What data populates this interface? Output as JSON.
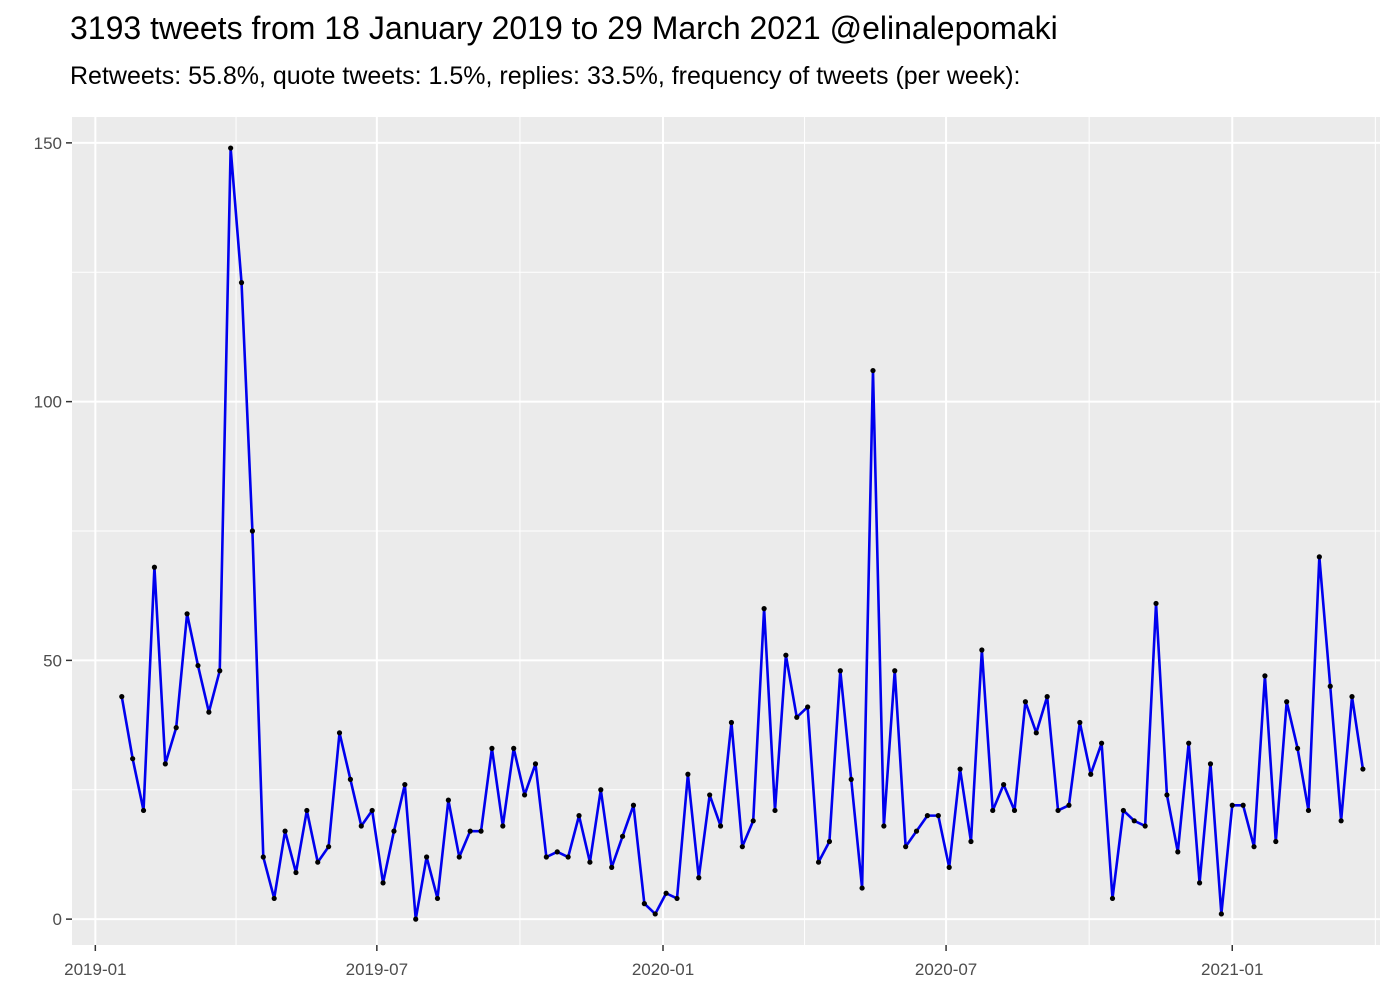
{
  "chart_data": {
    "type": "line",
    "title": "3193 tweets from 18 January 2019 to 29 March 2021 @elinalepomaki",
    "subtitle": "Retweets: 55.8%, quote tweets: 1.5%, replies: 33.5%, frequency of tweets (per week):",
    "xlabel": "",
    "ylabel": "",
    "xlim": [
      "2018-12-17",
      "2021-04-06"
    ],
    "ylim": [
      -5,
      155
    ],
    "x_ticks": [
      "2019-01",
      "2019-07",
      "2020-01",
      "2020-07",
      "2021-01"
    ],
    "y_ticks": [
      0,
      50,
      100,
      150
    ],
    "grid": true,
    "series_color": "#0000ee",
    "point_color": "#000000",
    "background": "#ebebeb",
    "x": [
      "2019-01-18",
      "2019-01-25",
      "2019-02-01",
      "2019-02-08",
      "2019-02-15",
      "2019-02-22",
      "2019-03-01",
      "2019-03-08",
      "2019-03-15",
      "2019-03-22",
      "2019-03-29",
      "2019-04-05",
      "2019-04-12",
      "2019-04-19",
      "2019-04-26",
      "2019-05-03",
      "2019-05-10",
      "2019-05-17",
      "2019-05-24",
      "2019-05-31",
      "2019-06-07",
      "2019-06-14",
      "2019-06-21",
      "2019-06-28",
      "2019-07-05",
      "2019-07-12",
      "2019-07-19",
      "2019-07-26",
      "2019-08-02",
      "2019-08-09",
      "2019-08-16",
      "2019-08-23",
      "2019-08-30",
      "2019-09-06",
      "2019-09-13",
      "2019-09-20",
      "2019-09-27",
      "2019-10-04",
      "2019-10-11",
      "2019-10-18",
      "2019-10-25",
      "2019-11-01",
      "2019-11-08",
      "2019-11-15",
      "2019-11-22",
      "2019-11-29",
      "2019-12-06",
      "2019-12-13",
      "2019-12-20",
      "2019-12-27",
      "2020-01-03",
      "2020-01-10",
      "2020-01-17",
      "2020-01-24",
      "2020-01-31",
      "2020-02-07",
      "2020-02-14",
      "2020-02-21",
      "2020-02-28",
      "2020-03-06",
      "2020-03-13",
      "2020-03-20",
      "2020-03-27",
      "2020-04-03",
      "2020-04-10",
      "2020-04-17",
      "2020-04-24",
      "2020-05-01",
      "2020-05-08",
      "2020-05-15",
      "2020-05-22",
      "2020-05-29",
      "2020-06-05",
      "2020-06-12",
      "2020-06-19",
      "2020-06-26",
      "2020-07-03",
      "2020-07-10",
      "2020-07-17",
      "2020-07-24",
      "2020-07-31",
      "2020-08-07",
      "2020-08-14",
      "2020-08-21",
      "2020-08-28",
      "2020-09-04",
      "2020-09-11",
      "2020-09-18",
      "2020-09-25",
      "2020-10-02",
      "2020-10-09",
      "2020-10-16",
      "2020-10-23",
      "2020-10-30",
      "2020-11-06",
      "2020-11-13",
      "2020-11-20",
      "2020-11-27",
      "2020-12-04",
      "2020-12-11",
      "2020-12-18",
      "2020-12-25",
      "2021-01-01",
      "2021-01-08",
      "2021-01-15",
      "2021-01-22",
      "2021-01-29",
      "2021-02-05",
      "2021-02-12",
      "2021-02-19",
      "2021-02-26",
      "2021-03-05",
      "2021-03-12",
      "2021-03-19",
      "2021-03-26"
    ],
    "y": [
      43,
      31,
      21,
      68,
      30,
      37,
      59,
      49,
      40,
      48,
      149,
      123,
      75,
      12,
      4,
      17,
      9,
      21,
      11,
      14,
      36,
      27,
      18,
      21,
      7,
      17,
      26,
      0,
      12,
      4,
      23,
      12,
      17,
      17,
      33,
      18,
      33,
      24,
      30,
      12,
      13,
      12,
      20,
      11,
      25,
      10,
      16,
      22,
      3,
      1,
      5,
      4,
      28,
      8,
      24,
      18,
      38,
      14,
      19,
      60,
      21,
      51,
      39,
      41,
      11,
      15,
      48,
      27,
      6,
      106,
      18,
      48,
      14,
      17,
      20,
      20,
      10,
      29,
      15,
      52,
      21,
      26,
      21,
      42,
      36,
      43,
      21,
      22,
      38,
      28,
      34,
      4,
      21,
      19,
      18,
      61,
      24,
      13,
      34,
      7,
      30,
      1,
      22,
      22,
      14,
      47,
      15,
      42,
      33,
      21,
      70,
      45,
      19,
      43,
      29
    ]
  }
}
